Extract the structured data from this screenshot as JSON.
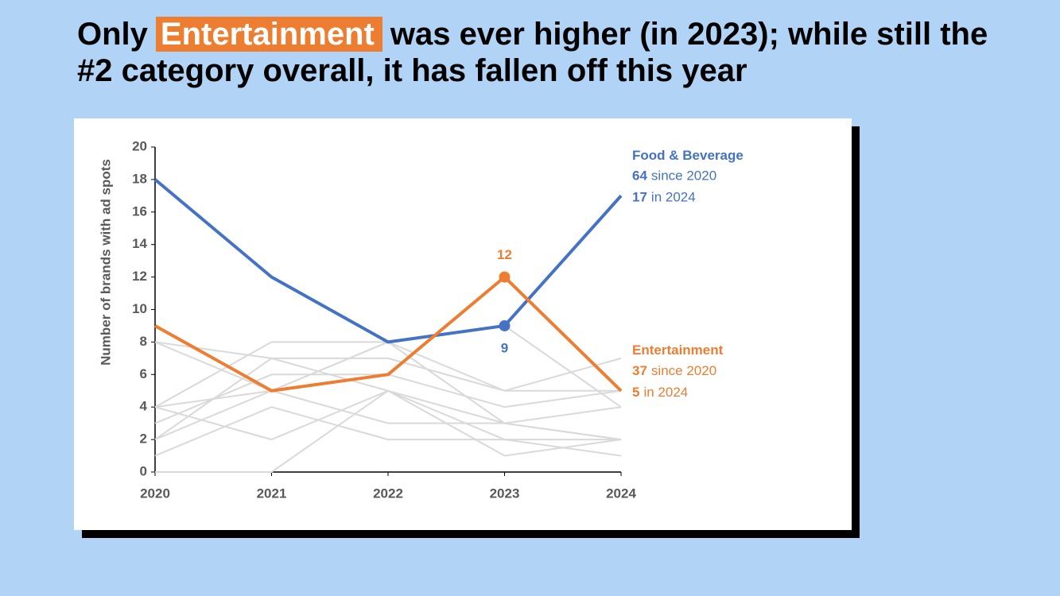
{
  "title_parts": [
    "Only",
    "Entertainment",
    "was ever higher (in 2023); while still the #2 category overall, it has fallen off this year"
  ],
  "chart_data": {
    "type": "line",
    "y_label": "Number of brands with ad spots",
    "categories": [
      "2020",
      "2021",
      "2022",
      "2023",
      "2024"
    ],
    "ylim": [
      0,
      20
    ],
    "yticks": [
      0,
      2,
      4,
      6,
      8,
      10,
      12,
      14,
      16,
      18,
      20
    ],
    "grid": false,
    "series": [
      {
        "color": "#d9d9d9",
        "values": [
          8,
          5,
          8,
          5,
          5
        ]
      },
      {
        "color": "#d9d9d9",
        "values": [
          8,
          7,
          7,
          5,
          7
        ]
      },
      {
        "color": "#d9d9d9",
        "values": [
          4,
          8,
          8,
          3,
          2
        ]
      },
      {
        "color": "#d9d9d9",
        "values": [
          4,
          2,
          5,
          3,
          2
        ]
      },
      {
        "color": "#d9d9d9",
        "values": [
          3,
          6,
          6,
          4,
          5
        ]
      },
      {
        "color": "#d9d9d9",
        "values": [
          2,
          7,
          5,
          2,
          1
        ]
      },
      {
        "color": "#d9d9d9",
        "values": [
          1,
          4,
          2,
          2,
          2
        ]
      },
      {
        "color": "#d9d9d9",
        "values": [
          0,
          0,
          5,
          1,
          2
        ]
      },
      {
        "color": "#d9d9d9",
        "values": [
          4,
          5,
          3,
          3,
          4
        ]
      },
      {
        "color": "#d9d9d9",
        "values": [
          2,
          5,
          8,
          9,
          4
        ]
      },
      {
        "name": "Food & Beverage",
        "color": "#4472c4",
        "values": [
          18,
          12,
          8,
          9,
          17
        ],
        "marker_index": 3,
        "label_side": "below",
        "total": 64,
        "total_text": "since 2020",
        "latest": 17,
        "latest_text": "in 2024"
      },
      {
        "name": "Entertainment",
        "color": "#ed7d31",
        "values": [
          9,
          5,
          6,
          12,
          5
        ],
        "marker_index": 3,
        "label_side": "above",
        "total": 37,
        "total_text": "since 2020",
        "latest": 5,
        "latest_text": "in 2024"
      }
    ]
  }
}
